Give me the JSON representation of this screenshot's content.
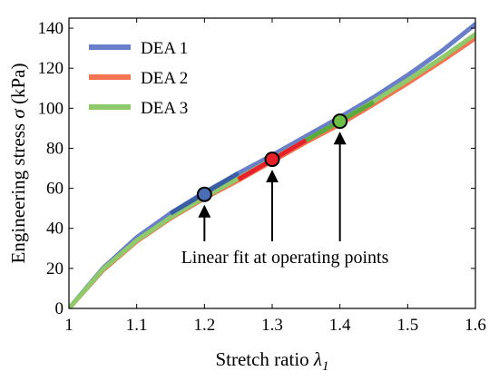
{
  "chart_data": {
    "type": "line",
    "xlabel": "Stretch ratio",
    "xlabel_symbol": "λ",
    "xlabel_subscript": "1",
    "ylabel": "Engineering stress",
    "ylabel_symbol": "σ",
    "ylabel_unit": "(kPa)",
    "xlim": [
      1,
      1.6
    ],
    "ylim": [
      0,
      145
    ],
    "xticks": [
      "1",
      "1.1",
      "1.2",
      "1.3",
      "1.4",
      "1.5",
      "1.6"
    ],
    "yticks": [
      "0",
      "20",
      "40",
      "60",
      "80",
      "100",
      "120",
      "140"
    ],
    "grid": false,
    "legend": "top-left",
    "series": [
      {
        "name": "DEA 1",
        "color": "#6a7fc9",
        "x": [
          1.0,
          1.05,
          1.1,
          1.15,
          1.2,
          1.25,
          1.3,
          1.35,
          1.4,
          1.45,
          1.5,
          1.55,
          1.6
        ],
        "y": [
          0,
          20,
          35.5,
          47.5,
          58,
          67.5,
          76.5,
          86,
          95.5,
          105.5,
          116.5,
          128.5,
          142
        ],
        "fit": {
          "x": [
            1.15,
            1.25
          ],
          "y": [
            47.5,
            67.5
          ],
          "color": "#3a5ea3"
        },
        "operating_point": {
          "x": 1.2,
          "y": 57,
          "fill": "#4a6db5"
        }
      },
      {
        "name": "DEA 2",
        "color": "#f27450",
        "x": [
          1.0,
          1.05,
          1.1,
          1.15,
          1.2,
          1.25,
          1.3,
          1.35,
          1.4,
          1.45,
          1.5,
          1.55,
          1.6
        ],
        "y": [
          0,
          19,
          33.5,
          45,
          55,
          64,
          73.5,
          83,
          92,
          102,
          112.5,
          123.5,
          135
        ],
        "fit": {
          "x": [
            1.25,
            1.35
          ],
          "y": [
            64.5,
            84
          ],
          "color": "#e8202a"
        },
        "operating_point": {
          "x": 1.3,
          "y": 74.5,
          "fill": "#e8202a"
        }
      },
      {
        "name": "DEA 3",
        "color": "#8ec96a",
        "x": [
          1.0,
          1.05,
          1.1,
          1.15,
          1.2,
          1.25,
          1.3,
          1.35,
          1.4,
          1.45,
          1.5,
          1.55,
          1.6
        ],
        "y": [
          0,
          19.5,
          34,
          45.5,
          55.5,
          65,
          74.5,
          84,
          93.5,
          103.5,
          114,
          125,
          137
        ],
        "fit": {
          "x": [
            1.35,
            1.45
          ],
          "y": [
            84,
            103
          ],
          "color": "#5aab3c"
        },
        "operating_point": {
          "x": 1.4,
          "y": 93.5,
          "fill": "#6cbf45"
        }
      }
    ],
    "annotation": {
      "text": "Linear fit at operating points",
      "arrow_targets": [
        {
          "x": 1.2,
          "y": 57
        },
        {
          "x": 1.3,
          "y": 74.5
        },
        {
          "x": 1.4,
          "y": 93.5
        }
      ]
    }
  }
}
